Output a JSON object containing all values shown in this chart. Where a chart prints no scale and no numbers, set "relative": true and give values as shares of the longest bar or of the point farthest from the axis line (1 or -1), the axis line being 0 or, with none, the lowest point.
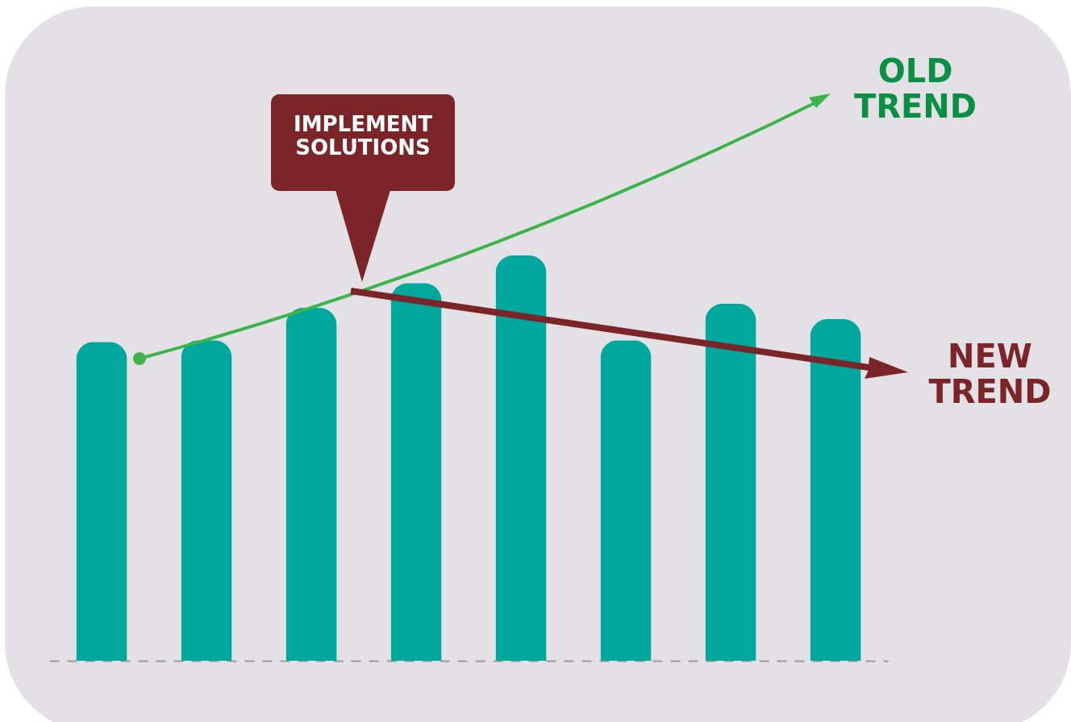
{
  "chart_data": {
    "type": "bar",
    "relative": true,
    "color": "#00a79d",
    "categories": [
      null,
      null,
      null,
      null,
      null,
      null,
      null,
      null
    ],
    "values": [
      0.787,
      0.791,
      0.871,
      0.932,
      1,
      0.791,
      0.881,
      0.843
    ],
    "annotations": [
      "IMPLEMENT SOLUTIONS",
      "OLD TREND",
      "NEW TREND"
    ]
  }
}
